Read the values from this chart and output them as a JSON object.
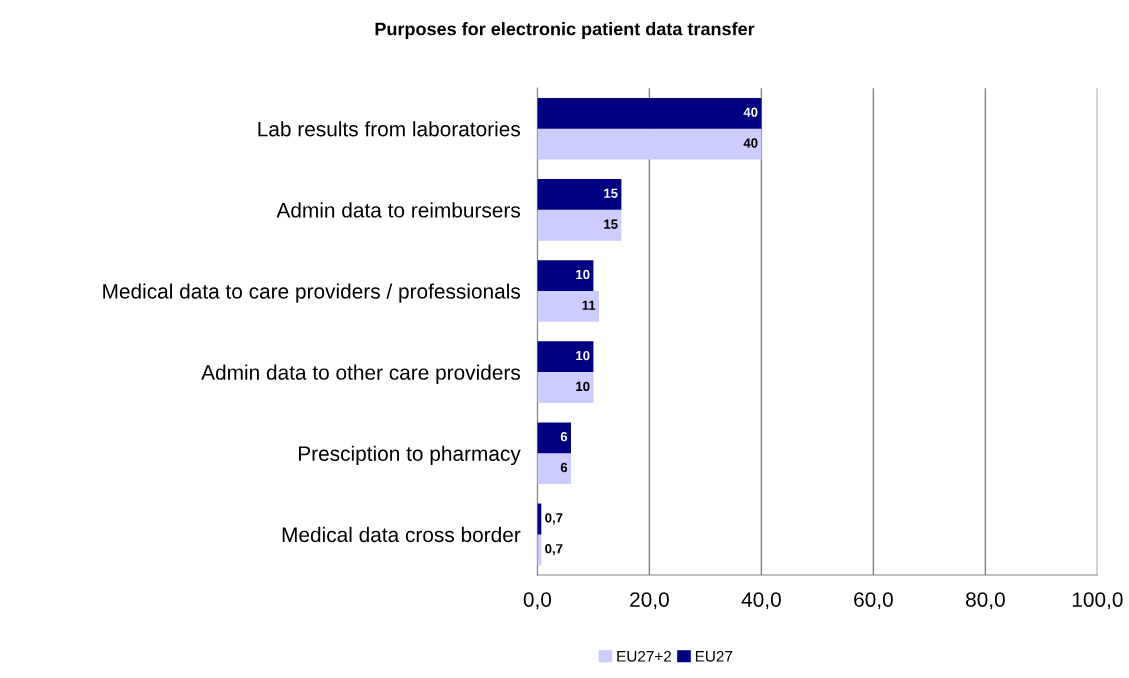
{
  "chart_data": {
    "type": "bar",
    "orientation": "horizontal",
    "title": "Purposes for electronic patient data transfer",
    "categories": [
      "Lab results from laboratories",
      "Admin data to reimbursers",
      "Medical data to care providers / professionals",
      "Admin data to other care providers",
      "Presciption to pharmacy",
      "Medical data cross border"
    ],
    "series": [
      {
        "name": "EU27+2",
        "color": "#ccccff",
        "values": [
          40,
          15,
          11,
          10,
          6,
          0.7
        ],
        "value_labels": [
          "40",
          "15",
          "11",
          "10",
          "6",
          "0,7"
        ]
      },
      {
        "name": "EU27",
        "color": "#000080",
        "values": [
          40,
          15,
          10,
          10,
          6,
          0.7
        ],
        "value_labels": [
          "40",
          "15",
          "10",
          "10",
          "6",
          "0,7"
        ]
      }
    ],
    "xlim": [
      0,
      100
    ],
    "xticks": [
      {
        "value": 0,
        "label": "0,0"
      },
      {
        "value": 20,
        "label": "20,0"
      },
      {
        "value": 40,
        "label": "40,0"
      },
      {
        "value": 60,
        "label": "60,0"
      },
      {
        "value": 80,
        "label": "80,0"
      },
      {
        "value": 100,
        "label": "100,0"
      }
    ],
    "grid": "x",
    "legend": "bottom"
  }
}
